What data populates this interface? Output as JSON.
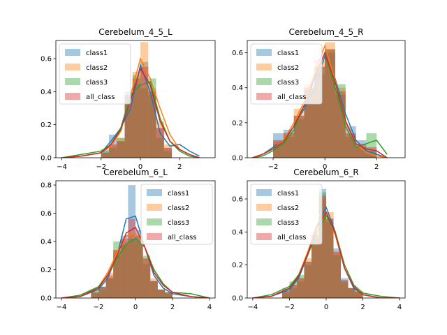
{
  "colors": {
    "class1": "#1f77b4",
    "class2": "#ff7f0e",
    "class3": "#2ca02c",
    "all_class": "#d62728"
  },
  "chart_data": [
    {
      "type": "histogram-kde",
      "title": "Cerebelum_4_5_L",
      "xlim": [
        -4.3,
        3.8
      ],
      "ylim": [
        0,
        0.71
      ],
      "xticks": [
        -4,
        -2,
        0,
        2
      ],
      "yticks": [
        0.0,
        0.2,
        0.4,
        0.6
      ],
      "ytick_labels": [
        "0.0",
        "0.2",
        "0.4",
        "0.6"
      ],
      "legend_position": "top-left",
      "series": [
        {
          "name": "class1",
          "color": "#1f77b4",
          "bin_edges": [
            -2.0,
            -1.6,
            -1.2,
            -0.8,
            -0.4,
            0.0,
            0.4,
            0.8,
            1.2,
            1.6
          ],
          "hist": [
            0.05,
            0.14,
            0.1,
            0.4,
            0.45,
            0.58,
            0.38,
            0.18,
            0.06
          ],
          "kde_x": [
            -4.0,
            -3.0,
            -2.0,
            -1.5,
            -1.0,
            -0.5,
            0.0,
            0.5,
            1.0,
            1.5,
            2.0,
            2.5,
            3.0
          ],
          "kde_y": [
            0.0,
            0.01,
            0.03,
            0.1,
            0.18,
            0.3,
            0.56,
            0.4,
            0.15,
            0.07,
            0.08,
            0.04,
            0.01
          ]
        },
        {
          "name": "class2",
          "color": "#ff7f0e",
          "bin_edges": [
            -2.0,
            -1.6,
            -1.2,
            -0.8,
            -0.4,
            0.0,
            0.4,
            0.8,
            1.2,
            1.6
          ],
          "hist": [
            0.03,
            0.08,
            0.12,
            0.36,
            0.52,
            0.7,
            0.42,
            0.22,
            0.08
          ],
          "kde_x": [
            -4.0,
            -3.0,
            -2.0,
            -1.5,
            -1.0,
            -0.5,
            0.0,
            0.5,
            1.0,
            1.5,
            2.0,
            2.5,
            3.0
          ],
          "kde_y": [
            0.0,
            0.01,
            0.03,
            0.07,
            0.16,
            0.38,
            0.6,
            0.48,
            0.3,
            0.14,
            0.05,
            0.02,
            0.0
          ]
        },
        {
          "name": "class3",
          "color": "#2ca02c",
          "bin_edges": [
            -2.0,
            -1.6,
            -1.2,
            -0.8,
            -0.4,
            0.0,
            0.4,
            0.8,
            1.2,
            1.6
          ],
          "hist": [
            0.04,
            0.06,
            0.12,
            0.38,
            0.5,
            0.42,
            0.48,
            0.12,
            0.04
          ],
          "kde_x": [
            -4.0,
            -3.0,
            -2.0,
            -1.5,
            -1.0,
            -0.5,
            0.0,
            0.5,
            1.0,
            1.5,
            2.0,
            2.5,
            3.0
          ],
          "kde_y": [
            0.0,
            0.02,
            0.04,
            0.08,
            0.18,
            0.38,
            0.44,
            0.46,
            0.24,
            0.1,
            0.04,
            0.01,
            0.0
          ]
        },
        {
          "name": "all_class",
          "color": "#d62728",
          "bin_edges": [
            -2.0,
            -1.6,
            -1.2,
            -0.8,
            -0.4,
            0.0,
            0.4,
            0.8,
            1.2,
            1.6
          ],
          "hist": [
            0.03,
            0.08,
            0.1,
            0.38,
            0.48,
            0.55,
            0.4,
            0.18,
            0.06
          ],
          "kde_x": [
            -4.0,
            -3.0,
            -2.0,
            -1.5,
            -1.0,
            -0.5,
            0.0,
            0.5,
            1.0,
            1.5,
            2.0,
            2.5,
            3.0
          ],
          "kde_y": [
            0.0,
            0.01,
            0.03,
            0.08,
            0.17,
            0.35,
            0.54,
            0.44,
            0.22,
            0.1,
            0.05,
            0.02,
            0.0
          ]
        }
      ]
    },
    {
      "type": "histogram-kde",
      "title": "Cerebelum_4_5_R",
      "xlim": [
        -3.0,
        3.1
      ],
      "ylim": [
        0,
        0.67
      ],
      "xticks": [
        -2,
        0,
        2
      ],
      "yticks": [
        0.0,
        0.2,
        0.4,
        0.6
      ],
      "ytick_labels": [
        "0.0",
        "0.2",
        "0.4",
        "0.6"
      ],
      "legend_position": "top-left",
      "series": [
        {
          "name": "class1",
          "color": "#1f77b4",
          "bin_edges": [
            -2.0,
            -1.6,
            -1.2,
            -0.8,
            -0.4,
            0.0,
            0.4,
            0.8,
            1.2,
            1.6,
            2.0
          ],
          "hist": [
            0.14,
            0.16,
            0.24,
            0.38,
            0.48,
            0.6,
            0.36,
            0.18,
            0.1,
            0.04
          ],
          "kde_x": [
            -2.8,
            -2.4,
            -2.0,
            -1.6,
            -1.2,
            -0.8,
            -0.4,
            0.0,
            0.4,
            0.8,
            1.2,
            1.6,
            2.0,
            2.4
          ],
          "kde_y": [
            0.0,
            0.02,
            0.06,
            0.1,
            0.18,
            0.28,
            0.4,
            0.58,
            0.45,
            0.25,
            0.1,
            0.04,
            0.02,
            0.0
          ]
        },
        {
          "name": "class2",
          "color": "#ff7f0e",
          "bin_edges": [
            -2.0,
            -1.6,
            -1.2,
            -0.8,
            -0.4,
            0.0,
            0.4,
            0.8,
            1.2,
            1.6,
            2.0
          ],
          "hist": [
            0.1,
            0.14,
            0.28,
            0.42,
            0.56,
            0.66,
            0.4,
            0.14,
            0.06,
            0.02
          ],
          "kde_x": [
            -2.8,
            -2.4,
            -2.0,
            -1.6,
            -1.2,
            -0.8,
            -0.4,
            0.0,
            0.4,
            0.8,
            1.2,
            1.6,
            2.0,
            2.4
          ],
          "kde_y": [
            0.0,
            0.02,
            0.05,
            0.1,
            0.2,
            0.32,
            0.48,
            0.64,
            0.44,
            0.2,
            0.08,
            0.03,
            0.01,
            0.0
          ]
        },
        {
          "name": "class3",
          "color": "#2ca02c",
          "bin_edges": [
            -2.0,
            -1.6,
            -1.2,
            -0.8,
            -0.4,
            0.0,
            0.4,
            0.8,
            1.2,
            1.6,
            2.0
          ],
          "hist": [
            0.08,
            0.12,
            0.22,
            0.4,
            0.52,
            0.62,
            0.42,
            0.12,
            0.06,
            0.14
          ],
          "kde_x": [
            -2.8,
            -2.4,
            -2.0,
            -1.6,
            -1.2,
            -0.8,
            -0.4,
            0.0,
            0.4,
            0.8,
            1.2,
            1.6,
            2.0,
            2.4
          ],
          "kde_y": [
            0.0,
            0.01,
            0.04,
            0.08,
            0.16,
            0.3,
            0.46,
            0.6,
            0.4,
            0.18,
            0.06,
            0.08,
            0.1,
            0.02
          ]
        },
        {
          "name": "all_class",
          "color": "#d62728",
          "bin_edges": [
            -2.0,
            -1.6,
            -1.2,
            -0.8,
            -0.4,
            0.0,
            0.4,
            0.8,
            1.2,
            1.6,
            2.0
          ],
          "hist": [
            0.1,
            0.14,
            0.24,
            0.4,
            0.52,
            0.62,
            0.38,
            0.14,
            0.08,
            0.06
          ],
          "kde_x": [
            -2.8,
            -2.4,
            -2.0,
            -1.6,
            -1.2,
            -0.8,
            -0.4,
            0.0,
            0.4,
            0.8,
            1.2,
            1.6,
            2.0,
            2.4
          ],
          "kde_y": [
            0.0,
            0.02,
            0.05,
            0.09,
            0.18,
            0.3,
            0.45,
            0.6,
            0.43,
            0.21,
            0.08,
            0.05,
            0.04,
            0.0
          ]
        }
      ]
    },
    {
      "type": "histogram-kde",
      "title": "Cerebelum_6_L",
      "xlim": [
        -4.3,
        4.3
      ],
      "ylim": [
        0,
        0.83
      ],
      "xticks": [
        -4,
        -2,
        0,
        2,
        4
      ],
      "yticks": [
        0.0,
        0.2,
        0.4,
        0.6,
        0.8
      ],
      "ytick_labels": [
        "0.0",
        "0.2",
        "0.4",
        "0.6",
        "0.8"
      ],
      "legend_position": "top-right",
      "series": [
        {
          "name": "class1",
          "color": "#1f77b4",
          "bin_edges": [
            -2.4,
            -2.0,
            -1.6,
            -1.2,
            -0.8,
            -0.4,
            0.0,
            0.4,
            0.8,
            1.2,
            1.6,
            2.0
          ],
          "hist": [
            0.04,
            0.08,
            0.14,
            0.3,
            0.44,
            0.8,
            0.48,
            0.24,
            0.12,
            0.06,
            0.04
          ],
          "kde_x": [
            -4.0,
            -3.0,
            -2.0,
            -1.5,
            -1.0,
            -0.5,
            0.0,
            0.5,
            1.0,
            1.5,
            2.0,
            3.0,
            4.0
          ],
          "kde_y": [
            0.0,
            0.01,
            0.06,
            0.14,
            0.3,
            0.56,
            0.58,
            0.36,
            0.16,
            0.07,
            0.03,
            0.01,
            0.0
          ]
        },
        {
          "name": "class2",
          "color": "#ff7f0e",
          "bin_edges": [
            -2.4,
            -2.0,
            -1.6,
            -1.2,
            -0.8,
            -0.4,
            0.0,
            0.4,
            0.8,
            1.2,
            1.6,
            2.0
          ],
          "hist": [
            0.04,
            0.06,
            0.18,
            0.34,
            0.4,
            0.46,
            0.4,
            0.28,
            0.14,
            0.06,
            0.04
          ],
          "kde_x": [
            -4.0,
            -3.0,
            -2.0,
            -1.5,
            -1.0,
            -0.5,
            0.0,
            0.5,
            1.0,
            1.5,
            2.0,
            3.0,
            4.0
          ],
          "kde_y": [
            0.0,
            0.01,
            0.08,
            0.18,
            0.32,
            0.44,
            0.46,
            0.36,
            0.2,
            0.1,
            0.04,
            0.01,
            0.0
          ]
        },
        {
          "name": "class3",
          "color": "#2ca02c",
          "bin_edges": [
            -2.4,
            -2.0,
            -1.6,
            -1.2,
            -0.8,
            -0.4,
            0.0,
            0.4,
            0.8,
            1.2,
            1.6,
            2.0
          ],
          "hist": [
            0.06,
            0.08,
            0.14,
            0.4,
            0.38,
            0.42,
            0.44,
            0.3,
            0.12,
            0.06,
            0.04
          ],
          "kde_x": [
            -4.0,
            -3.0,
            -2.0,
            -1.5,
            -1.0,
            -0.5,
            0.0,
            0.5,
            1.0,
            1.5,
            2.0,
            3.0,
            4.0
          ],
          "kde_y": [
            0.0,
            0.02,
            0.08,
            0.16,
            0.28,
            0.38,
            0.42,
            0.36,
            0.2,
            0.1,
            0.04,
            0.03,
            0.0
          ]
        },
        {
          "name": "all_class",
          "color": "#d62728",
          "bin_edges": [
            -2.4,
            -2.0,
            -1.6,
            -1.2,
            -0.8,
            -0.4,
            0.0,
            0.4,
            0.8,
            1.2,
            1.6,
            2.0
          ],
          "hist": [
            0.04,
            0.08,
            0.16,
            0.34,
            0.42,
            0.56,
            0.44,
            0.28,
            0.12,
            0.06,
            0.04
          ],
          "kde_x": [
            -4.0,
            -3.0,
            -2.0,
            -1.5,
            -1.0,
            -0.5,
            0.0,
            0.5,
            1.0,
            1.5,
            2.0,
            3.0,
            4.0
          ],
          "kde_y": [
            0.0,
            0.01,
            0.07,
            0.16,
            0.3,
            0.46,
            0.5,
            0.36,
            0.18,
            0.09,
            0.04,
            0.01,
            0.0
          ]
        }
      ]
    },
    {
      "type": "histogram-kde",
      "title": "Cerebelum_6_R",
      "xlim": [
        -4.3,
        4.3
      ],
      "ylim": [
        0,
        0.71
      ],
      "xticks": [
        -4,
        -2,
        0,
        2,
        4
      ],
      "yticks": [
        0.0,
        0.2,
        0.4,
        0.6
      ],
      "ytick_labels": [
        "0.0",
        "0.2",
        "0.4",
        "0.6"
      ],
      "legend_position": "top-left",
      "series": [
        {
          "name": "class1",
          "color": "#1f77b4",
          "bin_edges": [
            -2.4,
            -2.0,
            -1.6,
            -1.2,
            -0.8,
            -0.4,
            0.0,
            0.4,
            0.8,
            1.2,
            1.6,
            2.0
          ],
          "hist": [
            0.04,
            0.06,
            0.1,
            0.2,
            0.38,
            0.66,
            0.46,
            0.3,
            0.12,
            0.06,
            0.04
          ],
          "kde_x": [
            -4.0,
            -3.0,
            -2.0,
            -1.5,
            -1.0,
            -0.5,
            0.0,
            0.5,
            1.0,
            1.5,
            2.0,
            3.0,
            4.0
          ],
          "kde_y": [
            0.0,
            0.01,
            0.05,
            0.12,
            0.26,
            0.44,
            0.55,
            0.4,
            0.18,
            0.06,
            0.02,
            0.0,
            0.0
          ]
        },
        {
          "name": "class2",
          "color": "#ff7f0e",
          "bin_edges": [
            -2.4,
            -2.0,
            -1.6,
            -1.2,
            -0.8,
            -0.4,
            0.0,
            0.4,
            0.8,
            1.2,
            1.6,
            2.0
          ],
          "hist": [
            0.03,
            0.08,
            0.12,
            0.24,
            0.4,
            0.6,
            0.52,
            0.28,
            0.1,
            0.06,
            0.04
          ],
          "kde_x": [
            -4.0,
            -3.0,
            -2.0,
            -1.5,
            -1.0,
            -0.5,
            0.0,
            0.5,
            1.0,
            1.5,
            2.0,
            3.0,
            4.0
          ],
          "kde_y": [
            0.0,
            0.01,
            0.06,
            0.14,
            0.28,
            0.44,
            0.52,
            0.38,
            0.18,
            0.07,
            0.02,
            0.0,
            0.0
          ]
        },
        {
          "name": "class3",
          "color": "#2ca02c",
          "bin_edges": [
            -2.4,
            -2.0,
            -1.6,
            -1.2,
            -0.8,
            -0.4,
            0.0,
            0.4,
            0.8,
            1.2,
            1.6,
            2.0
          ],
          "hist": [
            0.06,
            0.1,
            0.14,
            0.22,
            0.36,
            0.64,
            0.48,
            0.26,
            0.1,
            0.06,
            0.04
          ],
          "kde_x": [
            -4.0,
            -3.0,
            -2.0,
            -1.5,
            -1.0,
            -0.5,
            0.0,
            0.5,
            1.0,
            1.5,
            2.0,
            3.0,
            4.0
          ],
          "kde_y": [
            0.0,
            0.02,
            0.07,
            0.14,
            0.26,
            0.4,
            0.5,
            0.4,
            0.2,
            0.08,
            0.03,
            0.01,
            0.0
          ]
        },
        {
          "name": "all_class",
          "color": "#d62728",
          "bin_edges": [
            -2.4,
            -2.0,
            -1.6,
            -1.2,
            -0.8,
            -0.4,
            0.0,
            0.4,
            0.8,
            1.2,
            1.6,
            2.0
          ],
          "hist": [
            0.04,
            0.08,
            0.12,
            0.22,
            0.38,
            0.62,
            0.48,
            0.28,
            0.11,
            0.06,
            0.04
          ],
          "kde_x": [
            -4.0,
            -3.0,
            -2.0,
            -1.5,
            -1.0,
            -0.5,
            0.0,
            0.5,
            1.0,
            1.5,
            2.0,
            3.0,
            4.0
          ],
          "kde_y": [
            0.0,
            0.01,
            0.06,
            0.13,
            0.27,
            0.43,
            0.52,
            0.39,
            0.18,
            0.07,
            0.02,
            0.0,
            0.0
          ]
        }
      ]
    }
  ]
}
